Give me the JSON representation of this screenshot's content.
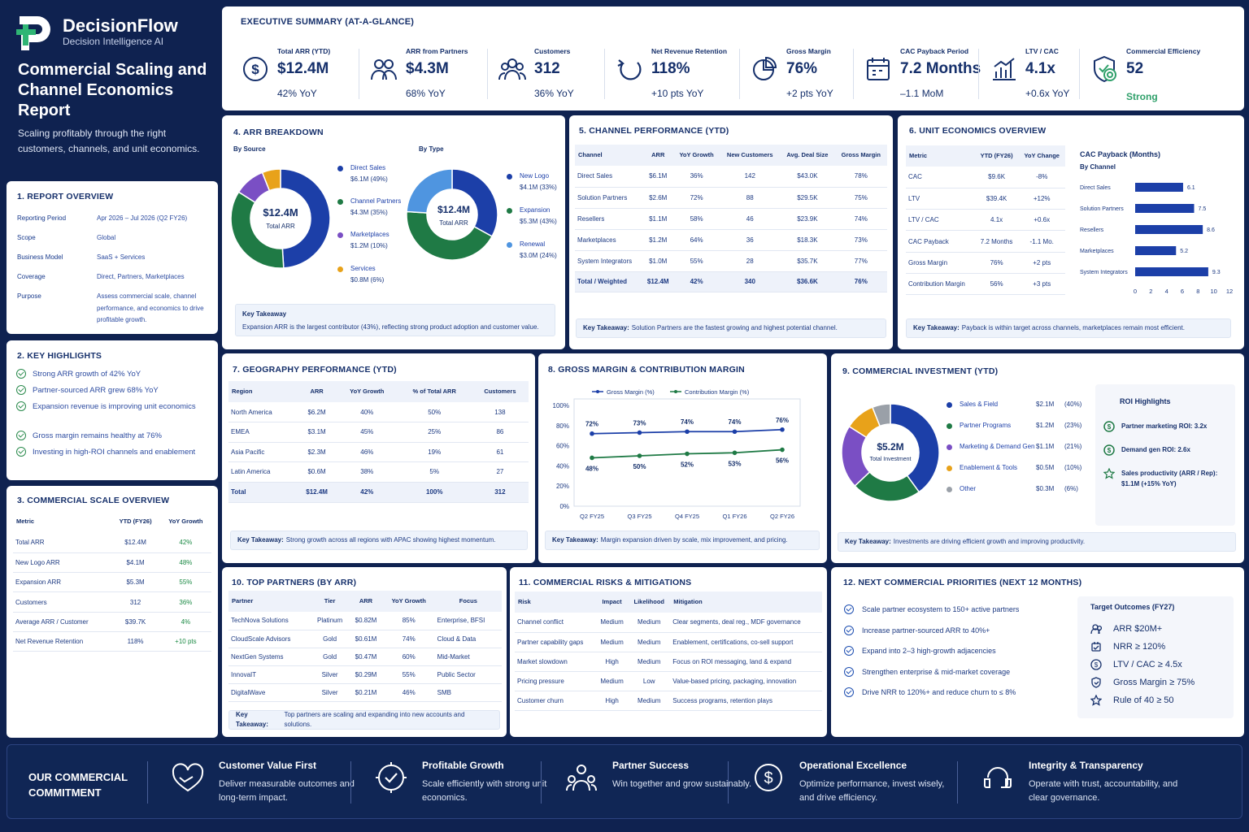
{
  "brand": {
    "name": "DecisionFlow",
    "tagline": "Decision Intelligence AI"
  },
  "report": {
    "title": "Commercial Scaling and Channel Economics Report",
    "subtitle": "Scaling profitably through the right customers, channels, and unit economics."
  },
  "overview": {
    "title": "1.  REPORT OVERVIEW",
    "rows": [
      {
        "k": "Reporting Period",
        "v": "Apr 2026 – Jul 2026 (Q2 FY26)"
      },
      {
        "k": "Scope",
        "v": "Global"
      },
      {
        "k": "Business Model",
        "v": "SaaS + Services"
      },
      {
        "k": "Coverage",
        "v": "Direct, Partners, Marketplaces"
      },
      {
        "k": "Purpose",
        "v": "Assess commercial scale, channel performance, and economics to drive profitable growth."
      }
    ]
  },
  "highlights": {
    "title": "2.  KEY HIGHLIGHTS",
    "items": [
      "Strong ARR growth of 42% YoY",
      "Partner-sourced ARR grew 68% YoY",
      "Expansion revenue is improving unit economics",
      "Gross margin remains healthy at 76%",
      "Investing in high-ROI channels and enablement"
    ]
  },
  "scale": {
    "title": "3.  COMMERCIAL SCALE OVERVIEW",
    "headers": [
      "Metric",
      "YTD (FY26)",
      "YoY Growth"
    ],
    "rows": [
      [
        "Total ARR",
        "$12.4M",
        "42%"
      ],
      [
        "New Logo ARR",
        "$4.1M",
        "48%"
      ],
      [
        "Expansion ARR",
        "$5.3M",
        "55%"
      ],
      [
        "Customers",
        "312",
        "36%"
      ],
      [
        "Average ARR / Customer",
        "$39.7K",
        "4%"
      ],
      [
        "Net Revenue Retention",
        "118%",
        "+10 pts"
      ]
    ]
  },
  "exec": {
    "title": "EXECUTIVE SUMMARY (AT-A-GLANCE)",
    "kpis": [
      {
        "label": "Total ARR (YTD)",
        "value": "$12.4M",
        "sub": "42% YoY",
        "icon": "dollar-icon"
      },
      {
        "label": "ARR from Partners",
        "value": "$4.3M",
        "sub": "68% YoY",
        "icon": "partners-icon"
      },
      {
        "label": "Customers",
        "value": "312",
        "sub": "36% YoY",
        "icon": "customers-icon"
      },
      {
        "label": "Net Revenue Retention",
        "value": "118%",
        "sub": "+10 pts YoY",
        "icon": "retention-icon"
      },
      {
        "label": "Gross Margin",
        "value": "76%",
        "sub": "+2 pts YoY",
        "icon": "pie-icon"
      },
      {
        "label": "CAC Payback Period",
        "value": "7.2 Months",
        "sub": "–1.1 MoM",
        "icon": "calendar-icon"
      },
      {
        "label": "LTV / CAC",
        "value": "4.1x",
        "sub": "+0.6x YoY",
        "icon": "bar-chart-icon"
      },
      {
        "label": "Commercial Efficiency",
        "value": "52",
        "sub": "Strong",
        "icon": "target-shield-icon"
      }
    ]
  },
  "arr": {
    "title": "4.  ARR BREAKDOWN",
    "by_source": "By Source",
    "by_type": "By Type",
    "center_value": "$12.4M",
    "center_label": "Total ARR",
    "source": [
      {
        "name": "Direct Sales",
        "val": "$6.1M (49%)",
        "pct": 49,
        "color": "#1c3fa8"
      },
      {
        "name": "Channel Partners",
        "val": "$4.3M (35%)",
        "pct": 35,
        "color": "#1f7a45"
      },
      {
        "name": "Marketplaces",
        "val": "$1.2M (10%)",
        "pct": 10,
        "color": "#7a4fc4"
      },
      {
        "name": "Services",
        "val": "$0.8M (6%)",
        "pct": 6,
        "color": "#e8a21a"
      }
    ],
    "type": [
      {
        "name": "New Logo",
        "val": "$4.1M (33%)",
        "pct": 33,
        "color": "#1c3fa8"
      },
      {
        "name": "Expansion",
        "val": "$5.3M (43%)",
        "pct": 43,
        "color": "#1f7a45"
      },
      {
        "name": "Renewal",
        "val": "$3.0M (24%)",
        "pct": 24,
        "color": "#4f95e0"
      }
    ],
    "takeaway_label": "Key Takeaway",
    "takeaway": "Expansion ARR is the largest contributor (43%), reflecting strong product adoption and customer value."
  },
  "channel": {
    "title": "5.  CHANNEL PERFORMANCE (YTD)",
    "headers": [
      "Channel",
      "ARR",
      "YoY Growth",
      "New Customers",
      "Avg. Deal Size",
      "Gross Margin"
    ],
    "rows": [
      [
        "Direct Sales",
        "$6.1M",
        "36%",
        "142",
        "$43.0K",
        "78%"
      ],
      [
        "Solution Partners",
        "$2.6M",
        "72%",
        "88",
        "$29.5K",
        "75%"
      ],
      [
        "Resellers",
        "$1.1M",
        "58%",
        "46",
        "$23.9K",
        "74%"
      ],
      [
        "Marketplaces",
        "$1.2M",
        "64%",
        "36",
        "$18.3K",
        "73%"
      ],
      [
        "System Integrators",
        "$1.0M",
        "55%",
        "28",
        "$35.7K",
        "77%"
      ]
    ],
    "total": [
      "Total / Weighted",
      "$12.4M",
      "42%",
      "340",
      "$36.6K",
      "76%"
    ],
    "takeaway_label": "Key Takeaway:",
    "takeaway": "Solution Partners are the fastest growing and highest potential channel."
  },
  "unit": {
    "title": "6.  UNIT ECONOMICS OVERVIEW",
    "headers": [
      "Metric",
      "YTD (FY26)",
      "YoY Change"
    ],
    "rows": [
      [
        "CAC",
        "$9.6K",
        "-8%"
      ],
      [
        "LTV",
        "$39.4K",
        "+12%"
      ],
      [
        "LTV / CAC",
        "4.1x",
        "+0.6x"
      ],
      [
        "CAC Payback",
        "7.2 Months",
        "-1.1 Mo."
      ],
      [
        "Gross Margin",
        "76%",
        "+2 pts"
      ],
      [
        "Contribution Margin",
        "56%",
        "+3 pts"
      ]
    ],
    "takeaway_label": "Key Takeaway:",
    "takeaway": "Payback is within target across channels, marketplaces remain most efficient."
  },
  "chart_data": {
    "type": "bar",
    "title": "CAC Payback (Months)",
    "subtitle": "By Channel",
    "categories": [
      "Direct Sales",
      "Solution Partners",
      "Resellers",
      "Marketplaces",
      "System Integrators"
    ],
    "values": [
      6.1,
      7.5,
      8.6,
      5.2,
      9.3
    ],
    "xlim": [
      0,
      12
    ],
    "ticks": [
      0,
      2,
      4,
      6,
      8,
      10,
      12
    ],
    "orientation": "horizontal"
  },
  "geo": {
    "title": "7.  GEOGRAPHY PERFORMANCE (YTD)",
    "headers": [
      "Region",
      "ARR",
      "YoY Growth",
      "% of Total ARR",
      "Customers"
    ],
    "rows": [
      [
        "North America",
        "$6.2M",
        "40%",
        "50%",
        "138"
      ],
      [
        "EMEA",
        "$3.1M",
        "45%",
        "25%",
        "86"
      ],
      [
        "Asia Pacific",
        "$2.3M",
        "46%",
        "19%",
        "61"
      ],
      [
        "Latin America",
        "$0.6M",
        "38%",
        "5%",
        "27"
      ]
    ],
    "total": [
      "Total",
      "$12.4M",
      "42%",
      "100%",
      "312"
    ],
    "takeaway_label": "Key Takeaway:",
    "takeaway": "Strong growth across all regions with APAC showing highest momentum."
  },
  "margin": {
    "title": "8.  GROSS MARGIN & CONTRIBUTION MARGIN",
    "chart": {
      "type": "line",
      "categories": [
        "Q2 FY25",
        "Q3 FY25",
        "Q4 FY25",
        "Q1 FY26",
        "Q2 FY26"
      ],
      "ylim": [
        0,
        100
      ],
      "yticks": [
        "0%",
        "20%",
        "40%",
        "60%",
        "80%",
        "100%"
      ],
      "series": [
        {
          "name": "Gross Margin (%)",
          "values": [
            72,
            73,
            74,
            74,
            76
          ],
          "labels": [
            "72%",
            "73%",
            "74%",
            "74%",
            "76%"
          ],
          "color": "#1c3fa8"
        },
        {
          "name": "Contribution Margin (%)",
          "values": [
            48,
            50,
            52,
            53,
            56
          ],
          "labels": [
            "48%",
            "50%",
            "52%",
            "53%",
            "56%"
          ],
          "color": "#1f7a45"
        }
      ]
    },
    "takeaway_label": "Key Takeaway:",
    "takeaway": "Margin expansion driven by scale, mix improvement, and pricing."
  },
  "invest": {
    "title": "9.  COMMERCIAL INVESTMENT (YTD)",
    "center_value": "$5.2M",
    "center_label": "Total Investment",
    "items": [
      {
        "name": "Sales & Field",
        "val": "$2.1M",
        "pct_label": "(40%)",
        "pct": 40,
        "color": "#1c3fa8"
      },
      {
        "name": "Partner Programs",
        "val": "$1.2M",
        "pct_label": "(23%)",
        "pct": 23,
        "color": "#1f7a45"
      },
      {
        "name": "Marketing & Demand Gen",
        "val": "$1.1M",
        "pct_label": "(21%)",
        "pct": 21,
        "color": "#7a4fc4"
      },
      {
        "name": "Enablement & Tools",
        "val": "$0.5M",
        "pct_label": "(10%)",
        "pct": 10,
        "color": "#e8a21a"
      },
      {
        "name": "Other",
        "val": "$0.3M",
        "pct_label": "(6%)",
        "pct": 6,
        "color": "#9aa0a8"
      }
    ],
    "roi_title": "ROI Highlights",
    "roi": [
      "Partner marketing ROI: 3.2x",
      "Demand gen ROI: 2.6x",
      "Sales productivity (ARR / Rep): $1.1M (+15% YoY)"
    ],
    "takeaway_label": "Key Takeaway:",
    "takeaway": "Investments are driving efficient growth and improving productivity."
  },
  "partners": {
    "title": "10.  TOP PARTNERS (BY ARR)",
    "headers": [
      "Partner",
      "Tier",
      "ARR",
      "YoY Growth",
      "Focus"
    ],
    "rows": [
      [
        "TechNova Solutions",
        "Platinum",
        "$0.82M",
        "85%",
        "Enterprise, BFSI"
      ],
      [
        "CloudScale Advisors",
        "Gold",
        "$0.61M",
        "74%",
        "Cloud & Data"
      ],
      [
        "NextGen Systems",
        "Gold",
        "$0.47M",
        "60%",
        "Mid-Market"
      ],
      [
        "InnovaIT",
        "Silver",
        "$0.29M",
        "55%",
        "Public Sector"
      ],
      [
        "DigitalWave",
        "Silver",
        "$0.21M",
        "46%",
        "SMB"
      ]
    ],
    "takeaway_label": "Key Takeaway:",
    "takeaway": "Top partners are scaling and expanding into new accounts and solutions."
  },
  "risks": {
    "title": "11.  COMMERCIAL RISKS & MITIGATIONS",
    "headers": [
      "Risk",
      "Impact",
      "Likelihood",
      "Mitigation"
    ],
    "rows": [
      [
        "Channel conflict",
        "Medium",
        "Medium",
        "Clear segments, deal reg., MDF governance"
      ],
      [
        "Partner capability gaps",
        "Medium",
        "Medium",
        "Enablement, certifications, co-sell support"
      ],
      [
        "Market slowdown",
        "High",
        "Medium",
        "Focus on ROI messaging, land & expand"
      ],
      [
        "Pricing pressure",
        "Medium",
        "Low",
        "Value-based pricing, packaging, innovation"
      ],
      [
        "Customer churn",
        "High",
        "Medium",
        "Success programs, retention plays"
      ]
    ]
  },
  "priorities": {
    "title": "12.  NEXT COMMERCIAL PRIORITIES (NEXT 12 MONTHS)",
    "items": [
      "Scale partner ecosystem to 150+ active partners",
      "Increase partner-sourced ARR to 40%+",
      "Expand into 2–3 high-growth adjacencies",
      "Strengthen enterprise & mid-market coverage",
      "Drive NRR to 120%+ and reduce churn to ≤ 8%"
    ],
    "targets_title": "Target Outcomes (FY27)",
    "targets": [
      "ARR $20M+",
      "NRR ≥ 120%",
      "LTV / CAC ≥ 4.5x",
      "Gross Margin ≥ 75%",
      "Rule of 40 ≥ 50"
    ]
  },
  "footer": {
    "heading": "OUR COMMERCIAL COMMITMENT",
    "items": [
      {
        "title": "Customer Value First",
        "desc": "Deliver measurable outcomes and long-term impact."
      },
      {
        "title": "Profitable Growth",
        "desc": "Scale efficiently with strong unit economics."
      },
      {
        "title": "Partner Success",
        "desc": "Win together and grow sustainably."
      },
      {
        "title": "Operational Excellence",
        "desc": "Optimize performance, invest wisely, and drive efficiency."
      },
      {
        "title": "Integrity & Transparency",
        "desc": "Operate with trust, accountability, and clear governance."
      }
    ]
  }
}
